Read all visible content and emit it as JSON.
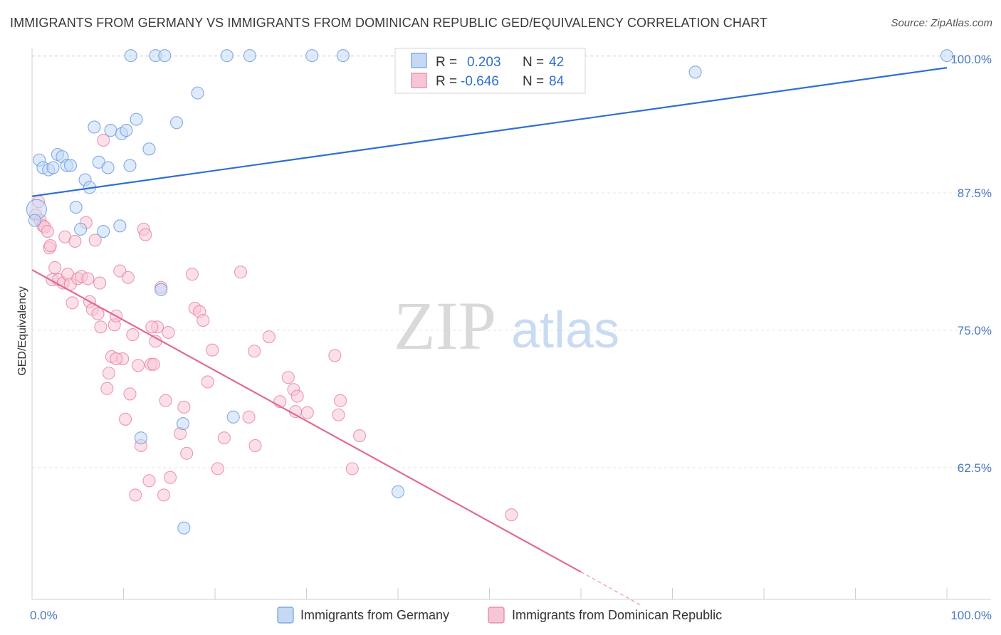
{
  "title": "IMMIGRANTS FROM GERMANY VS IMMIGRANTS FROM DOMINICAN REPUBLIC GED/EQUIVALENCY CORRELATION CHART",
  "source": "Source: ZipAtlas.com",
  "watermark": {
    "zip": "ZIP",
    "atlas": "atlas"
  },
  "colors": {
    "germany": "#6b9ee0",
    "germany_fill": "#c5d9f5",
    "dominican": "#e97fa3",
    "dominican_fill": "#f7c6d6",
    "trend_germany": "#2f6fd0",
    "trend_dominican": "#e06a95",
    "grid": "#e3e3e3",
    "tick_text": "#4a78c2"
  },
  "legend": {
    "rows": [
      {
        "r_label": "R =",
        "r_value": "0.203",
        "n_label": "N =",
        "n_value": "42"
      },
      {
        "r_label": "R =",
        "r_value": "-0.646",
        "n_label": "N =",
        "n_value": "84"
      }
    ]
  },
  "chart_data": {
    "type": "scatter",
    "title": "IMMIGRANTS FROM GERMANY VS IMMIGRANTS FROM DOMINICAN REPUBLIC GED/EQUIVALENCY CORRELATION CHART",
    "xlabel": "",
    "ylabel": "GED/Equivalency",
    "xlim": [
      0,
      100
    ],
    "ylim": [
      50.5,
      101.5
    ],
    "x_tick_labels": [
      "0.0%",
      "100.0%"
    ],
    "y_ticks": [
      62.5,
      75.0,
      87.5,
      100.0
    ],
    "y_tick_labels": [
      "62.5%",
      "75.0%",
      "87.5%",
      "100.0%"
    ],
    "grid": true,
    "legend_position": "top-center",
    "series": [
      {
        "name": "Immigrants from Germany",
        "trend": {
          "x": [
            0,
            100
          ],
          "y": [
            87.2,
            98.9
          ]
        },
        "points": [
          [
            0.5,
            86.0
          ],
          [
            0.8,
            90.5
          ],
          [
            1.2,
            89.8
          ],
          [
            1.8,
            89.6
          ],
          [
            2.3,
            89.8
          ],
          [
            2.8,
            91.0
          ],
          [
            3.3,
            90.8
          ],
          [
            3.8,
            90.0
          ],
          [
            4.2,
            90.0
          ],
          [
            5.8,
            88.7
          ],
          [
            6.3,
            88.0
          ],
          [
            4.8,
            86.2
          ],
          [
            5.3,
            84.2
          ],
          [
            6.8,
            93.5
          ],
          [
            7.3,
            90.3
          ],
          [
            7.8,
            84.0
          ],
          [
            8.3,
            89.8
          ],
          [
            8.6,
            93.2
          ],
          [
            9.6,
            84.5
          ],
          [
            9.8,
            92.9
          ],
          [
            10.3,
            93.2
          ],
          [
            10.7,
            90.0
          ],
          [
            10.8,
            100.0
          ],
          [
            11.4,
            94.2
          ],
          [
            12.8,
            91.5
          ],
          [
            13.5,
            100.0
          ],
          [
            14.5,
            100.0
          ],
          [
            14.1,
            78.7
          ],
          [
            15.8,
            93.9
          ],
          [
            18.1,
            96.6
          ],
          [
            21.3,
            100.0
          ],
          [
            23.8,
            100.0
          ],
          [
            30.6,
            100.0
          ],
          [
            34.0,
            100.0
          ],
          [
            16.6,
            57.0
          ],
          [
            16.5,
            66.5
          ],
          [
            11.9,
            65.2
          ],
          [
            22.0,
            67.1
          ],
          [
            40.0,
            60.3
          ],
          [
            72.5,
            98.5
          ],
          [
            100.0,
            100.0
          ],
          [
            0.3,
            85.0
          ]
        ]
      },
      {
        "name": "Immigrants from Dominican Republic",
        "trend": {
          "x": [
            0,
            60
          ],
          "y": [
            80.5,
            53.0
          ]
        },
        "trend_dashed": {
          "x": [
            60,
            66.5
          ],
          "y": [
            53.0,
            50.0
          ]
        },
        "points": [
          [
            0.4,
            85.5
          ],
          [
            0.7,
            86.7
          ],
          [
            0.9,
            85.0
          ],
          [
            1.2,
            84.5
          ],
          [
            1.4,
            84.4
          ],
          [
            1.7,
            84.0
          ],
          [
            1.9,
            82.5
          ],
          [
            2.0,
            82.7
          ],
          [
            2.2,
            79.6
          ],
          [
            2.5,
            80.7
          ],
          [
            2.9,
            79.6
          ],
          [
            3.4,
            79.3
          ],
          [
            3.6,
            83.5
          ],
          [
            3.9,
            80.1
          ],
          [
            4.2,
            79.2
          ],
          [
            4.4,
            77.5
          ],
          [
            4.7,
            83.1
          ],
          [
            5.0,
            79.7
          ],
          [
            5.4,
            79.9
          ],
          [
            5.9,
            84.8
          ],
          [
            6.1,
            79.7
          ],
          [
            6.3,
            77.6
          ],
          [
            6.6,
            76.9
          ],
          [
            6.9,
            83.2
          ],
          [
            7.2,
            76.5
          ],
          [
            7.5,
            75.3
          ],
          [
            7.8,
            92.3
          ],
          [
            8.2,
            69.7
          ],
          [
            8.4,
            71.1
          ],
          [
            8.7,
            72.6
          ],
          [
            9.0,
            75.5
          ],
          [
            9.2,
            76.3
          ],
          [
            9.6,
            80.4
          ],
          [
            9.9,
            72.4
          ],
          [
            10.2,
            66.9
          ],
          [
            10.5,
            79.8
          ],
          [
            10.7,
            69.2
          ],
          [
            11.0,
            74.6
          ],
          [
            11.3,
            60.0
          ],
          [
            11.6,
            71.8
          ],
          [
            11.9,
            64.5
          ],
          [
            12.2,
            84.2
          ],
          [
            12.4,
            83.7
          ],
          [
            12.8,
            61.3
          ],
          [
            13.0,
            71.9
          ],
          [
            13.3,
            71.9
          ],
          [
            13.5,
            74.0
          ],
          [
            13.7,
            75.3
          ],
          [
            14.1,
            78.9
          ],
          [
            14.4,
            60.0
          ],
          [
            14.6,
            68.6
          ],
          [
            14.9,
            74.8
          ],
          [
            15.1,
            61.6
          ],
          [
            16.2,
            65.6
          ],
          [
            16.6,
            68.0
          ],
          [
            16.9,
            63.8
          ],
          [
            17.5,
            80.1
          ],
          [
            17.8,
            77.0
          ],
          [
            18.3,
            76.7
          ],
          [
            18.7,
            75.9
          ],
          [
            19.2,
            70.3
          ],
          [
            19.7,
            73.2
          ],
          [
            20.3,
            62.4
          ],
          [
            21.0,
            65.2
          ],
          [
            22.8,
            80.3
          ],
          [
            23.7,
            67.1
          ],
          [
            24.4,
            64.5
          ],
          [
            24.3,
            73.1
          ],
          [
            25.9,
            74.4
          ],
          [
            27.1,
            68.5
          ],
          [
            28.0,
            70.7
          ],
          [
            28.6,
            69.6
          ],
          [
            28.8,
            67.6
          ],
          [
            29.0,
            69.0
          ],
          [
            30.1,
            67.5
          ],
          [
            33.1,
            72.7
          ],
          [
            33.5,
            67.3
          ],
          [
            33.7,
            68.6
          ],
          [
            35.0,
            62.4
          ],
          [
            35.8,
            65.4
          ],
          [
            52.4,
            58.2
          ],
          [
            7.4,
            79.3
          ],
          [
            13.1,
            75.3
          ],
          [
            9.2,
            72.4
          ]
        ]
      }
    ]
  },
  "bottom_legend": [
    {
      "label": "Immigrants from Germany"
    },
    {
      "label": "Immigrants from Dominican Republic"
    }
  ]
}
